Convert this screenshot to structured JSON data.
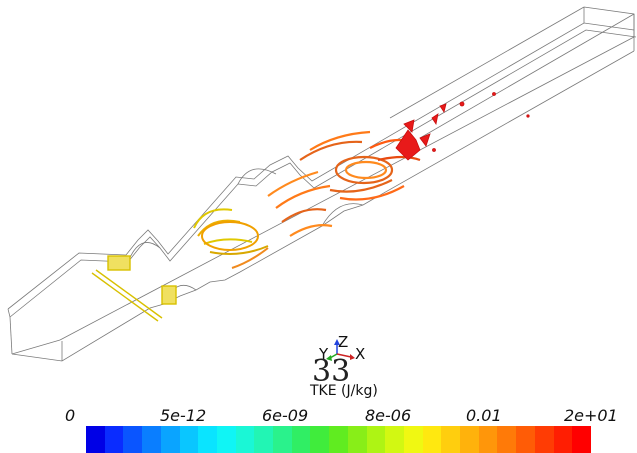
{
  "scene": {
    "frame_number": "33",
    "colorbar": {
      "title": "TKE (J/kg)",
      "tick_labels": [
        "0",
        "5e-12",
        "6e-09",
        "8e-06",
        "0.01",
        "2e+01"
      ],
      "colors": [
        "#0000e6",
        "#0a2cff",
        "#0a55ff",
        "#0a7eff",
        "#0aa4ff",
        "#0ac6ff",
        "#0ae4ff",
        "#10f5f5",
        "#1af7d6",
        "#22f5b4",
        "#2af28c",
        "#30ee64",
        "#40ec3c",
        "#60ec20",
        "#88ee18",
        "#aef414",
        "#d2f812",
        "#f0f812",
        "#ffe810",
        "#ffce0e",
        "#ffb20c",
        "#ff960a",
        "#ff7a08",
        "#ff5c06",
        "#ff3c04",
        "#ff1e02",
        "#ff0000"
      ]
    },
    "orientation_axes": {
      "x": "X",
      "y": "Y",
      "z": "Z"
    },
    "colors": {
      "outline": "#7a7a7a",
      "iso_yellow": "#e0c800",
      "iso_yellow_light": "#f0e060",
      "iso_orange": "#ff8a1e",
      "iso_orange_dark": "#e5641a",
      "iso_red": "#e81a1a",
      "axis_x": "#cc2222",
      "axis_y": "#22aa22",
      "axis_z": "#2244dd"
    }
  }
}
